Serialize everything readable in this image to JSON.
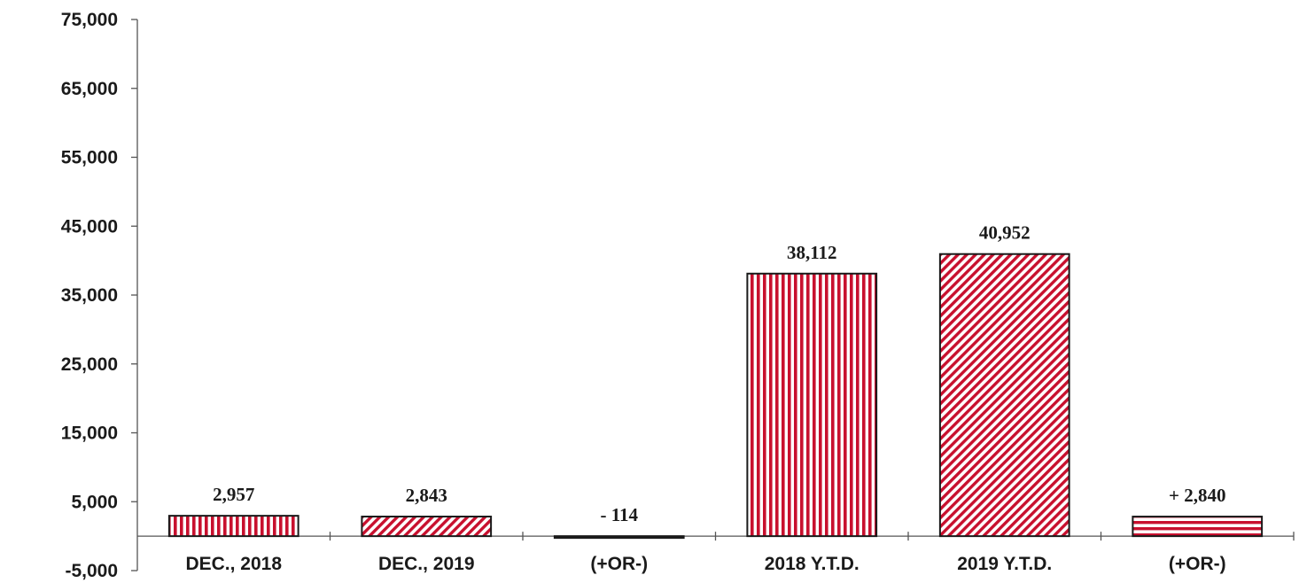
{
  "chart_data": {
    "type": "bar",
    "categories": [
      "DEC., 2018",
      "DEC., 2019",
      "(+OR-)",
      "2018 Y.T.D.",
      "2019 Y.T.D.",
      "(+OR-)"
    ],
    "values": [
      2957,
      2843,
      -114,
      38112,
      40952,
      2840
    ],
    "data_labels": [
      "2,957",
      "2,843",
      "- 114",
      "38,112",
      "40,952",
      "+ 2,840"
    ],
    "patterns": [
      "vertical",
      "diagonal",
      "diagonal",
      "vertical",
      "diagonal",
      "horizontal"
    ],
    "ylim": [
      -5000,
      75000
    ],
    "yticks": [
      -5000,
      5000,
      15000,
      25000,
      35000,
      45000,
      55000,
      65000,
      75000
    ],
    "ytick_labels": [
      "-5,000",
      "5,000",
      "15,000",
      "25,000",
      "35,000",
      "45,000",
      "55,000",
      "65,000",
      "75,000"
    ],
    "colors": {
      "bar_fill": "#c8102e",
      "bar_stripe_bg": "#ffffff",
      "outline": "#1a1a1a"
    },
    "grid": false,
    "legend": "none"
  }
}
